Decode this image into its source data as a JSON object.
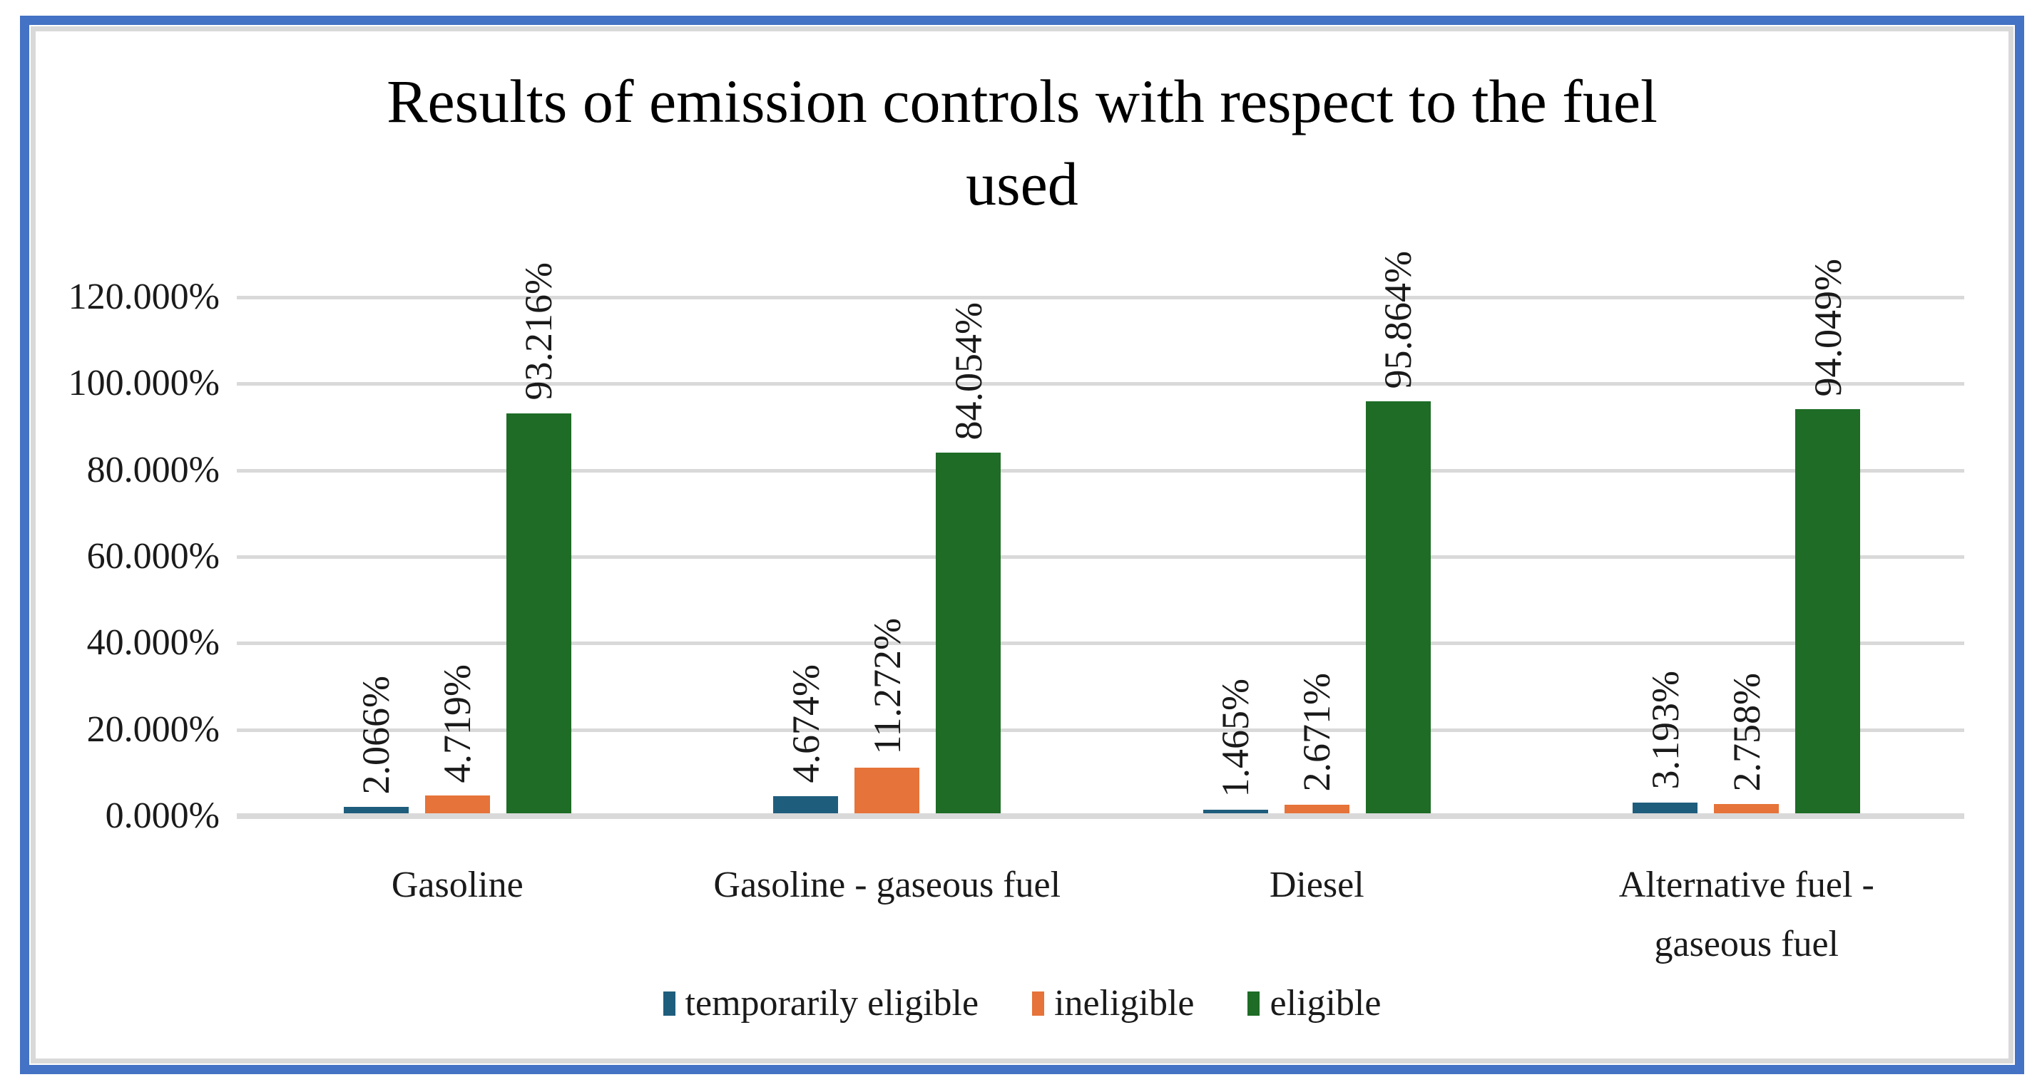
{
  "frame": {
    "border_color": "#4472C4",
    "inner_border_color": "#D9D9D9"
  },
  "chart_data": {
    "type": "bar",
    "title": "Results of emission controls with respect to the fuel used",
    "title_lines": [
      "Results of emission controls with respect to the fuel",
      "used"
    ],
    "categories": [
      "Gasoline",
      "Gasoline - gaseous fuel",
      "Diesel",
      "Alternative fuel -\ngaseous fuel"
    ],
    "series": [
      {
        "name": "temporarily eligible",
        "color": "#1F5D7D",
        "values": [
          2.066,
          4.674,
          1.465,
          3.193
        ],
        "labels": [
          "2.066%",
          "4.674%",
          "1.465%",
          "3.193%"
        ]
      },
      {
        "name": "ineligible",
        "color": "#E67339",
        "values": [
          4.719,
          11.272,
          2.671,
          2.758
        ],
        "labels": [
          "4.719%",
          "11.272%",
          "2.671%",
          "2.758%"
        ]
      },
      {
        "name": "eligible",
        "color": "#1E6C26",
        "values": [
          93.216,
          84.054,
          95.864,
          94.049
        ],
        "labels": [
          "93.216%",
          "84.054%",
          "95.864%",
          "94.049%"
        ]
      }
    ],
    "y_axis": {
      "ticks": [
        "120.000%",
        "100.000%",
        "80.000%",
        "60.000%",
        "40.000%",
        "20.000%",
        "0.000%"
      ],
      "max": 120,
      "step": 20,
      "unit": "%"
    },
    "ylim": [
      0,
      120
    ],
    "grid": true,
    "gridline_color": "#D9D9D9",
    "legend_position": "bottom",
    "xlabel": "",
    "ylabel": ""
  }
}
